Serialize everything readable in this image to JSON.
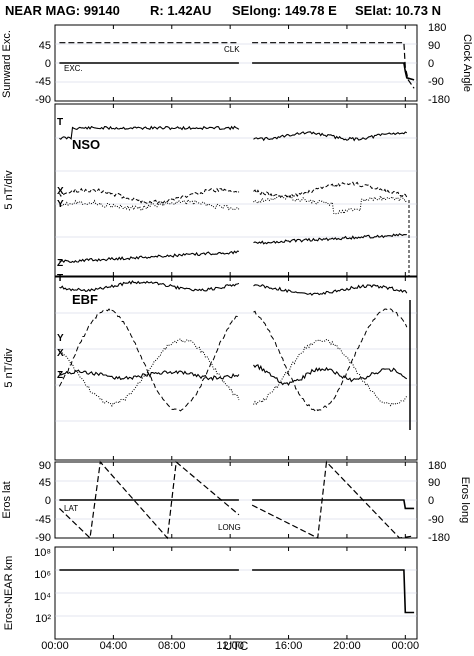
{
  "header": {
    "title": "NEAR MAG: 99140",
    "range": "R: 1.42AU",
    "selong": "SElong: 149.78 E",
    "selat": "SElat: 10.73 N"
  },
  "chart_data": [
    {
      "type": "line",
      "panel": "sunward-exc-clock",
      "ylabel_left": "Sunward Exc.",
      "ylabel_right": "Clock Angle",
      "yticks_left": [
        "45",
        "0",
        "-45",
        "-90"
      ],
      "yticks_right": [
        "180",
        "90",
        "0",
        "-90",
        "-180"
      ],
      "ylim_left": [
        -90,
        90
      ],
      "series": [
        {
          "name": "EXC.",
          "style": "solid",
          "x": [
            0.3,
            12.6,
            13.5,
            23.9,
            24.0,
            24.1,
            24.6
          ],
          "y": [
            0,
            0,
            0,
            0,
            -20,
            -35,
            -40
          ]
        },
        {
          "name": "CLK",
          "style": "dashed",
          "x": [
            0.3,
            12.6,
            13.5,
            23.9,
            24.0,
            24.2,
            24.6
          ],
          "y": [
            48,
            48,
            48,
            48,
            -10,
            -40,
            -60
          ]
        }
      ]
    },
    {
      "type": "line",
      "panel": "nso",
      "label": "NSO",
      "ylabel": "5 nT/div",
      "markers": [
        "T",
        "X",
        "Y",
        "Z"
      ]
    },
    {
      "type": "line",
      "panel": "ebf",
      "label": "EBF",
      "ylabel": "5 nT/div",
      "markers": [
        "T",
        "Y",
        "X",
        "Z"
      ]
    },
    {
      "type": "line",
      "panel": "eros-lat-long",
      "ylabel_left": "Eros lat",
      "ylabel_right": "Eros long",
      "yticks_left": [
        "90",
        "45",
        "0",
        "-45",
        "-90"
      ],
      "yticks_right": [
        "180",
        "90",
        "0",
        "-90",
        "-180"
      ],
      "ylim_left": [
        -90,
        90
      ],
      "series": [
        {
          "name": "LAT",
          "style": "solid",
          "x": [
            0.3,
            12.6,
            13.5,
            23.9,
            24.0,
            24.6
          ],
          "y": [
            0,
            0,
            0,
            0,
            -20,
            -20
          ]
        },
        {
          "name": "LONG",
          "style": "dashed",
          "x": [
            0.3,
            2.4,
            3.1,
            7.7,
            8.3,
            12.6,
            13.5,
            18.0,
            18.6,
            23.6,
            24.6
          ],
          "y": [
            -20,
            -90,
            90,
            -90,
            90,
            -35,
            -12,
            -90,
            90,
            -90,
            -85
          ]
        }
      ]
    },
    {
      "type": "line",
      "panel": "eros-near-distance",
      "ylabel": "Eros-NEAR km",
      "yscale": "log",
      "yticks": [
        "10⁸",
        "10⁶",
        "10⁴",
        "10²"
      ],
      "ylim": [
        1,
        100000000
      ],
      "xlabel": "UTC",
      "xticks": [
        "00:00",
        "04:00",
        "08:00",
        "12:00",
        "16:00",
        "20:00",
        "00:00"
      ],
      "xlim": [
        0,
        24.8
      ],
      "series": [
        {
          "name": "",
          "style": "solid",
          "x": [
            0.3,
            12.6,
            13.5,
            23.9,
            24.0,
            24.6
          ],
          "y": [
            1000000,
            1000000,
            1000000,
            1000000,
            200,
            200
          ]
        }
      ]
    }
  ],
  "data_gap": [
    12.6,
    13.5
  ]
}
